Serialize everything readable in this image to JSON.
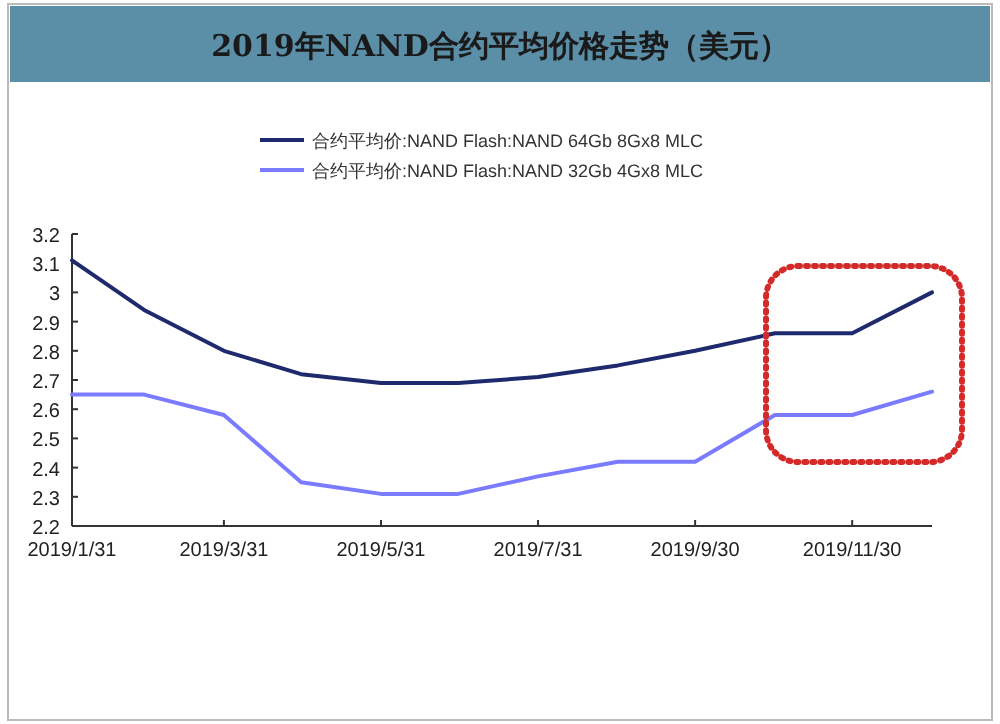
{
  "chart_data": {
    "type": "line",
    "title": "2019年NAND合约平均价格走势（美元）",
    "x": [
      "2019-01-31",
      "2019-02-28",
      "2019-03-31",
      "2019-04-30",
      "2019-05-31",
      "2019-06-30",
      "2019-07-31",
      "2019-08-31",
      "2019-09-30",
      "2019-10-31",
      "2019-11-30",
      "2019-12-31"
    ],
    "series": [
      {
        "name": "合约平均价:NAND Flash:NAND 64Gb 8Gx8 MLC",
        "color": "#1f2a6e",
        "values": [
          3.11,
          2.94,
          2.8,
          2.72,
          2.69,
          2.69,
          2.71,
          2.75,
          2.8,
          2.86,
          2.86,
          3.0
        ]
      },
      {
        "name": "合约平均价:NAND Flash:NAND 32Gb 4Gx8 MLC",
        "color": "#7b7bff",
        "values": [
          2.65,
          2.65,
          2.58,
          2.35,
          2.31,
          2.31,
          2.37,
          2.42,
          2.42,
          2.58,
          2.58,
          2.66
        ]
      }
    ],
    "xlim": [
      "2019-01-31",
      "2019-12-31"
    ],
    "xticks": [
      {
        "value": "2019-01-31",
        "label": "2019/1/31"
      },
      {
        "value": "2019-03-31",
        "label": "2019/3/31"
      },
      {
        "value": "2019-05-31",
        "label": "2019/5/31"
      },
      {
        "value": "2019-07-31",
        "label": "2019/7/31"
      },
      {
        "value": "2019-09-30",
        "label": "2019/9/30"
      },
      {
        "value": "2019-11-30",
        "label": "2019/11/30"
      }
    ],
    "ylim": [
      2.2,
      3.2
    ],
    "yticks": [
      2.2,
      2.3,
      2.4,
      2.5,
      2.6,
      2.7,
      2.8,
      2.9,
      3,
      3.1,
      3.2
    ],
    "legend": "top",
    "grid": false,
    "marker": "none",
    "line_style": "solid"
  }
}
